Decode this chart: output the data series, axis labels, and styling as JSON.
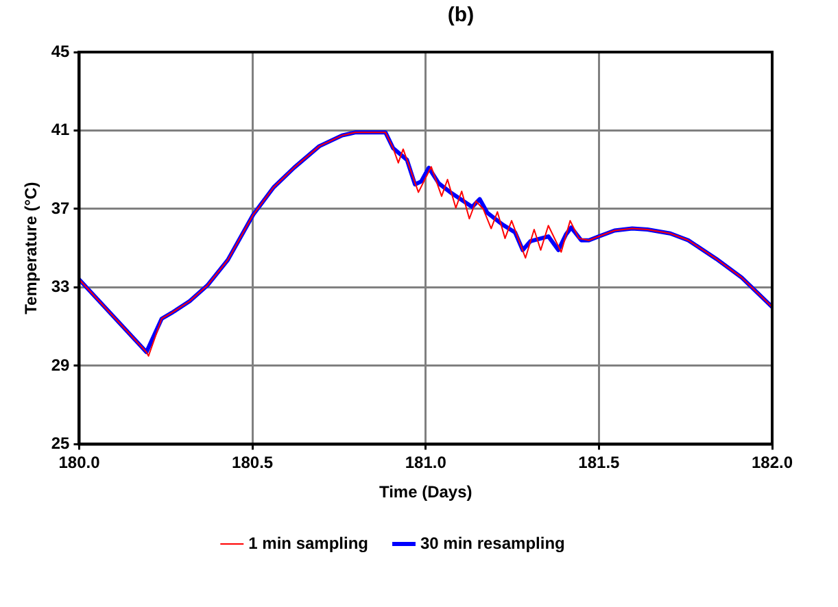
{
  "chart_data": {
    "type": "line",
    "title": "(b)",
    "xlabel": "Time (Days)",
    "ylabel": "Temperature (°C)",
    "xlim": [
      180,
      182
    ],
    "xticks": [
      {
        "value": 180,
        "label": "180.0"
      },
      {
        "value": 180.5,
        "label": "180.5"
      },
      {
        "value": 181,
        "label": "181.0"
      },
      {
        "value": 181.5,
        "label": "181.5"
      },
      {
        "value": 182,
        "label": "182.0"
      }
    ],
    "ylim": [
      25,
      45
    ],
    "yticks": [
      25,
      29,
      33,
      37,
      41,
      45
    ],
    "grid": true,
    "legend": "bottom",
    "marker": "none",
    "line_style": "solid",
    "series": [
      {
        "name": "1 min sampling",
        "color": "#ff0000",
        "x": [
          180.0,
          180.194,
          180.2,
          180.238,
          180.267,
          180.319,
          180.37,
          180.429,
          180.502,
          180.561,
          180.62,
          180.693,
          180.759,
          180.796,
          180.884,
          180.906,
          180.921,
          180.935,
          180.957,
          180.979,
          181.016,
          181.046,
          181.063,
          181.087,
          181.104,
          181.126,
          181.145,
          181.166,
          181.189,
          181.207,
          181.229,
          181.248,
          181.288,
          181.313,
          181.332,
          181.354,
          181.391,
          181.417,
          181.442,
          181.471,
          181.5,
          181.545,
          181.596,
          181.64,
          181.706,
          181.758,
          181.839,
          181.912,
          182.0
        ],
        "values": [
          33.4,
          29.7,
          29.5,
          31.4,
          31.7,
          32.3,
          33.1,
          34.4,
          36.7,
          38.1,
          39.1,
          40.2,
          40.75,
          40.9,
          40.9,
          40.1,
          39.35,
          40.05,
          38.95,
          37.85,
          39.15,
          37.65,
          38.5,
          37.05,
          37.9,
          36.5,
          37.4,
          37.0,
          36.0,
          36.85,
          35.5,
          36.4,
          34.5,
          35.95,
          34.9,
          36.15,
          34.8,
          36.4,
          35.5,
          35.4,
          35.6,
          35.9,
          36.0,
          35.95,
          35.75,
          35.4,
          34.45,
          33.5,
          32.0
        ]
      },
      {
        "name": "30 min resampling",
        "color": "#0000ff",
        "x": [
          180.0,
          180.194,
          180.238,
          180.267,
          180.319,
          180.37,
          180.429,
          180.502,
          180.561,
          180.62,
          180.693,
          180.759,
          180.796,
          180.884,
          180.906,
          180.946,
          180.969,
          180.987,
          181.009,
          181.038,
          181.075,
          181.134,
          181.156,
          181.178,
          181.222,
          181.258,
          181.28,
          181.302,
          181.354,
          181.383,
          181.405,
          181.42,
          181.449,
          181.471,
          181.5,
          181.545,
          181.596,
          181.64,
          181.706,
          181.758,
          181.839,
          181.912,
          182.0
        ],
        "values": [
          33.4,
          29.7,
          31.4,
          31.7,
          32.3,
          33.1,
          34.4,
          36.7,
          38.1,
          39.1,
          40.2,
          40.75,
          40.9,
          40.9,
          40.1,
          39.5,
          38.25,
          38.4,
          39.1,
          38.3,
          37.8,
          37.1,
          37.5,
          36.8,
          36.2,
          35.8,
          34.9,
          35.35,
          35.6,
          34.9,
          35.7,
          36.05,
          35.4,
          35.4,
          35.6,
          35.9,
          36.0,
          35.95,
          35.75,
          35.4,
          34.45,
          33.5,
          32.0
        ]
      }
    ]
  }
}
